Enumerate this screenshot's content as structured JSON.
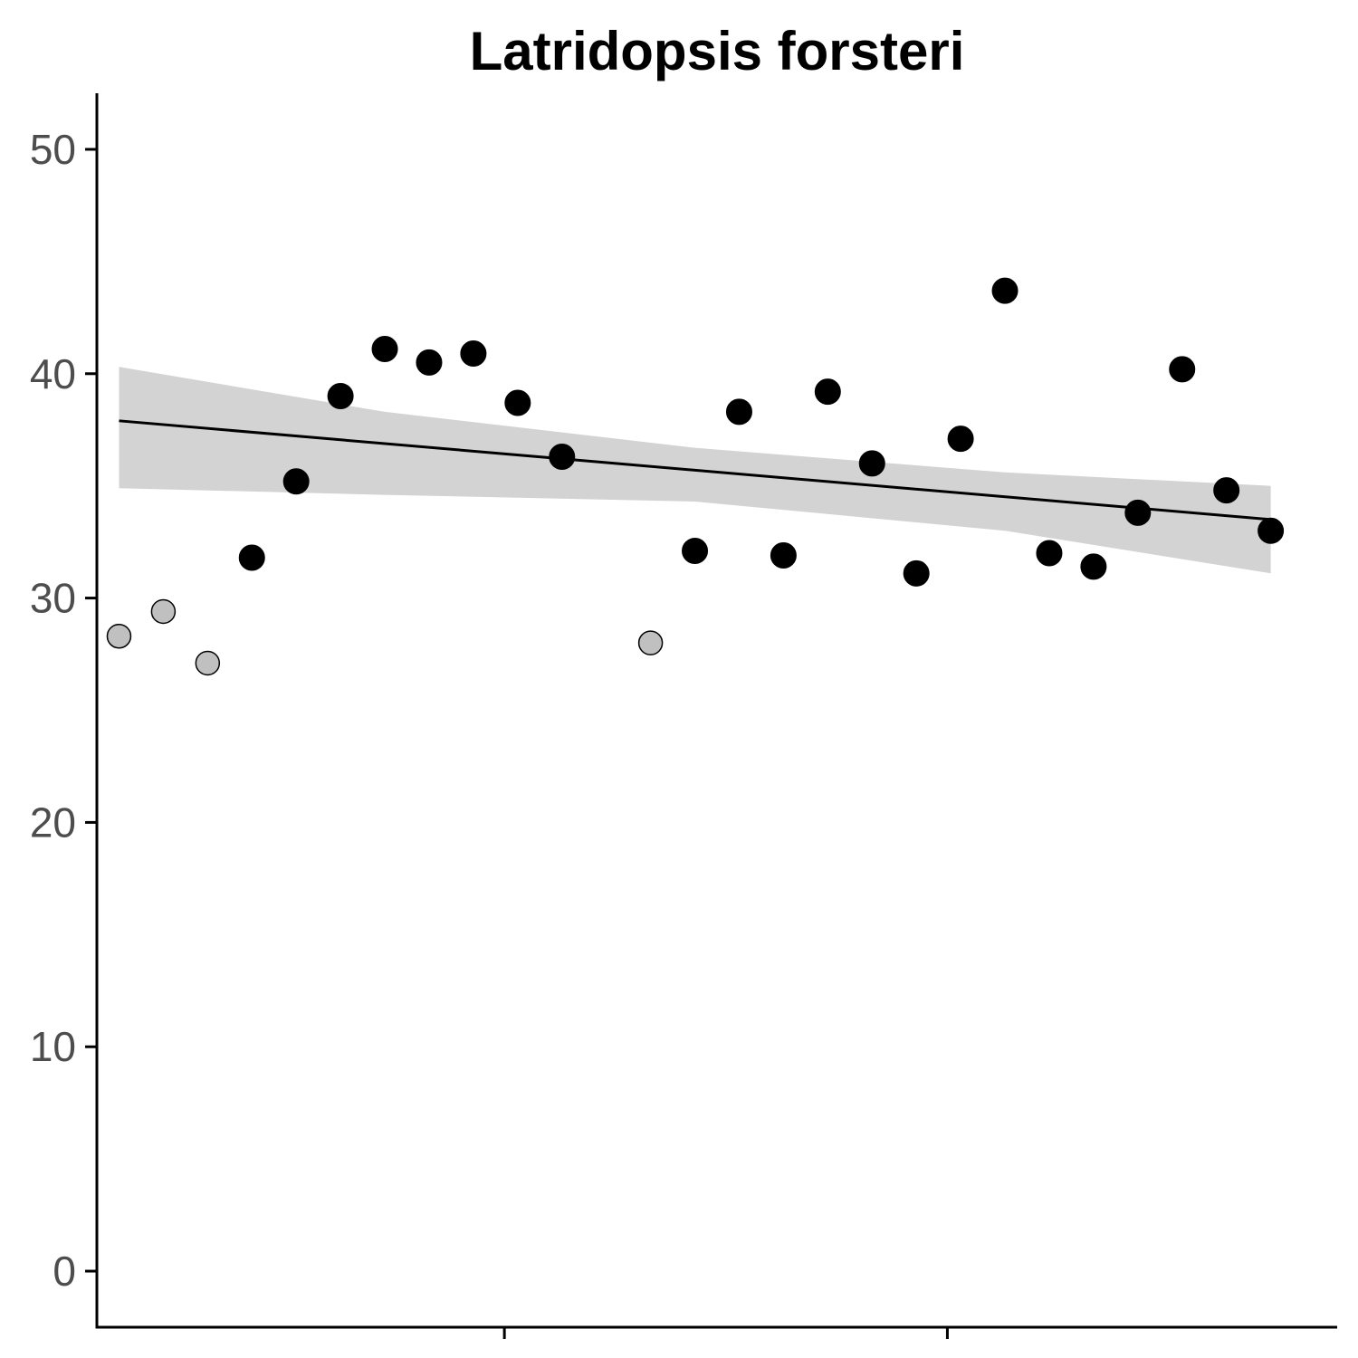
{
  "chart_data": {
    "type": "scatter",
    "title": "Latridopsis forsteri",
    "xlabel": "",
    "ylabel": "",
    "ylim": [
      -2.5,
      52.5
    ],
    "xlim": [
      -0.5,
      27.5
    ],
    "yticks": [
      0,
      10,
      20,
      30,
      40,
      50
    ],
    "xticks": [
      8.7,
      18.7
    ],
    "xtick_labels": [
      "",
      ""
    ],
    "grid": false,
    "legend": "none",
    "colors": {
      "included": "#000000",
      "excluded": "#c0c0c0",
      "trend": "#000000",
      "ribbon": "#d3d3d3"
    },
    "points": [
      {
        "x": 0,
        "y": 28.3,
        "group": "excluded"
      },
      {
        "x": 1,
        "y": 29.4,
        "group": "excluded"
      },
      {
        "x": 2,
        "y": 27.1,
        "group": "excluded"
      },
      {
        "x": 3,
        "y": 31.8,
        "group": "included"
      },
      {
        "x": 4,
        "y": 35.2,
        "group": "included"
      },
      {
        "x": 5,
        "y": 39.0,
        "group": "included"
      },
      {
        "x": 6,
        "y": 41.1,
        "group": "included"
      },
      {
        "x": 7,
        "y": 40.5,
        "group": "included"
      },
      {
        "x": 8,
        "y": 40.9,
        "group": "included"
      },
      {
        "x": 9,
        "y": 38.7,
        "group": "included"
      },
      {
        "x": 10,
        "y": 36.3,
        "group": "included"
      },
      {
        "x": 12,
        "y": 28.0,
        "group": "excluded"
      },
      {
        "x": 13,
        "y": 32.1,
        "group": "included"
      },
      {
        "x": 14,
        "y": 38.3,
        "group": "included"
      },
      {
        "x": 15,
        "y": 31.9,
        "group": "included"
      },
      {
        "x": 16,
        "y": 39.2,
        "group": "included"
      },
      {
        "x": 17,
        "y": 36.0,
        "group": "included"
      },
      {
        "x": 18,
        "y": 31.1,
        "group": "included"
      },
      {
        "x": 19,
        "y": 37.1,
        "group": "included"
      },
      {
        "x": 20,
        "y": 43.7,
        "group": "included"
      },
      {
        "x": 21,
        "y": 32.0,
        "group": "included"
      },
      {
        "x": 22,
        "y": 31.4,
        "group": "included"
      },
      {
        "x": 23,
        "y": 33.8,
        "group": "included"
      },
      {
        "x": 24,
        "y": 40.2,
        "group": "included"
      },
      {
        "x": 25,
        "y": 34.8,
        "group": "included"
      },
      {
        "x": 26,
        "y": 33.0,
        "group": "included"
      }
    ],
    "trend": {
      "start": {
        "x": 0,
        "y": 37.9
      },
      "end": {
        "x": 26,
        "y": 33.5
      },
      "ribbon_upper": [
        {
          "x": 0,
          "y": 40.3
        },
        {
          "x": 6,
          "y": 38.3
        },
        {
          "x": 13,
          "y": 36.7
        },
        {
          "x": 20,
          "y": 35.6
        },
        {
          "x": 26,
          "y": 35.0
        }
      ],
      "ribbon_lower": [
        {
          "x": 0,
          "y": 34.9
        },
        {
          "x": 6,
          "y": 34.6
        },
        {
          "x": 13,
          "y": 34.3
        },
        {
          "x": 20,
          "y": 33.0
        },
        {
          "x": 26,
          "y": 31.1
        }
      ]
    }
  }
}
